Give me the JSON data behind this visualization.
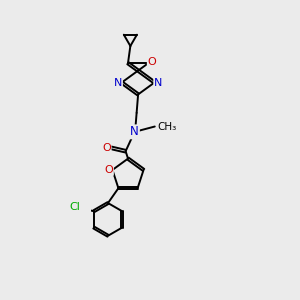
{
  "bg_color": "#ebebeb",
  "bond_color": "#000000",
  "N_color": "#0000cc",
  "O_color": "#cc0000",
  "Cl_color": "#00aa00",
  "line_width": 1.4,
  "doffset": 0.055,
  "figsize": [
    3.0,
    3.0
  ],
  "dpi": 100,
  "xlim": [
    3.5,
    7.5
  ],
  "ylim": [
    0.5,
    10.5
  ]
}
